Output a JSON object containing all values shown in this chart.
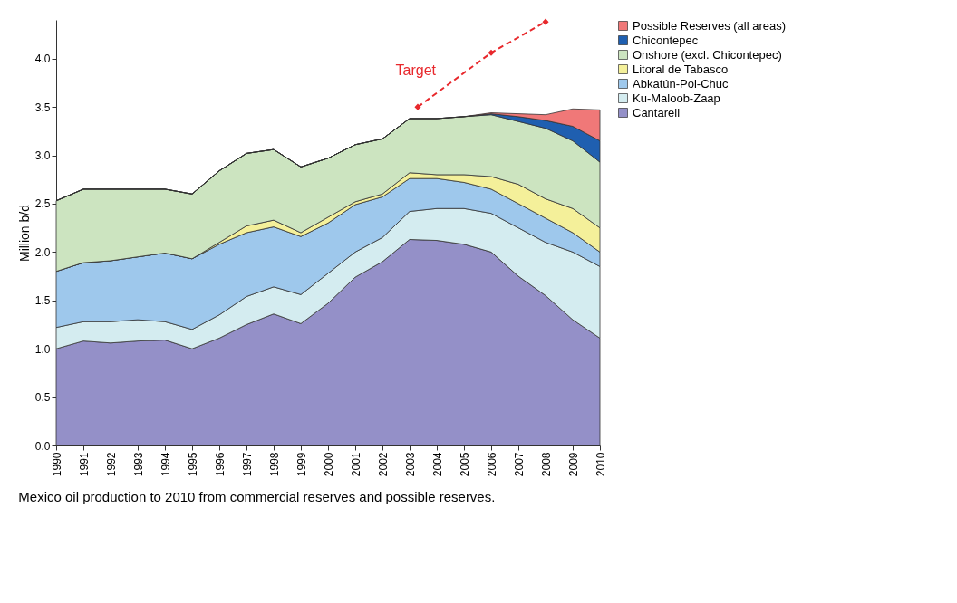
{
  "chart_data": {
    "type": "area",
    "stacked": true,
    "ylabel": "Million b/d",
    "x": [
      1990,
      1991,
      1992,
      1993,
      1994,
      1995,
      1996,
      1997,
      1998,
      1999,
      2000,
      2001,
      2002,
      2003,
      2004,
      2005,
      2006,
      2007,
      2008,
      2009,
      2010
    ],
    "xlim": [
      1990,
      2010
    ],
    "xticks": [
      1990,
      1991,
      1992,
      1993,
      1994,
      1995,
      1996,
      1997,
      1998,
      1999,
      2000,
      2001,
      2002,
      2003,
      2004,
      2005,
      2006,
      2007,
      2008,
      2009,
      2010
    ],
    "ylim": [
      0,
      4.4
    ],
    "yticks": [
      {
        "value": 0,
        "label": "0.0"
      },
      0.5,
      {
        "value": 1,
        "label": "1.0"
      },
      1.5,
      {
        "value": 2,
        "label": "2.0"
      },
      2.5,
      {
        "value": 3,
        "label": "3.0"
      },
      3.5,
      {
        "value": 4,
        "label": "4.0"
      }
    ],
    "grid": false,
    "legend": "right",
    "series": [
      {
        "name": "Cantarell",
        "color": "#9490c8",
        "values": [
          1.0,
          1.08,
          1.06,
          1.08,
          1.09,
          1.0,
          1.11,
          1.25,
          1.36,
          1.26,
          1.47,
          1.74,
          1.9,
          2.13,
          2.12,
          2.08,
          2.0,
          1.75,
          1.55,
          1.3,
          1.11
        ]
      },
      {
        "name": "Ku-Maloob-Zaap",
        "color": "#d4ecf0",
        "values": [
          0.22,
          0.2,
          0.22,
          0.22,
          0.19,
          0.2,
          0.24,
          0.29,
          0.28,
          0.3,
          0.31,
          0.26,
          0.25,
          0.29,
          0.33,
          0.37,
          0.4,
          0.5,
          0.55,
          0.7,
          0.74
        ]
      },
      {
        "name": "Abkatún-Pol-Chuc",
        "color": "#9ec8ec",
        "values": [
          0.58,
          0.61,
          0.63,
          0.65,
          0.71,
          0.73,
          0.73,
          0.66,
          0.62,
          0.6,
          0.52,
          0.49,
          0.42,
          0.34,
          0.31,
          0.27,
          0.25,
          0.25,
          0.25,
          0.2,
          0.15
        ]
      },
      {
        "name": "Litoral de Tabasco",
        "color": "#f4f09a",
        "values": [
          0,
          0,
          0,
          0,
          0,
          0,
          0.02,
          0.07,
          0.07,
          0.04,
          0.06,
          0.03,
          0.03,
          0.06,
          0.04,
          0.08,
          0.13,
          0.2,
          0.2,
          0.25,
          0.25
        ]
      },
      {
        "name": "Onshore (excl. Chicontepec)",
        "color": "#cce4c0",
        "values": [
          0.73,
          0.76,
          0.74,
          0.7,
          0.66,
          0.67,
          0.74,
          0.75,
          0.73,
          0.68,
          0.61,
          0.59,
          0.57,
          0.56,
          0.58,
          0.6,
          0.64,
          0.65,
          0.73,
          0.7,
          0.68
        ]
      },
      {
        "name": "Chicontepec",
        "color": "#1f5fb0",
        "values": [
          0,
          0,
          0,
          0,
          0,
          0,
          0,
          0,
          0,
          0,
          0,
          0,
          0,
          0,
          0,
          0,
          0.01,
          0.05,
          0.08,
          0.15,
          0.22
        ]
      },
      {
        "name": "Possible Reserves (all areas)",
        "color": "#f07878",
        "values": [
          0,
          0,
          0,
          0,
          0,
          0,
          0,
          0,
          0,
          0,
          0,
          0,
          0,
          0,
          0,
          0,
          0.01,
          0.03,
          0.06,
          0.18,
          0.32
        ]
      },
      {
        "name": "Target",
        "type": "line",
        "color": "#e8282c",
        "line_style": "dashed",
        "marker": "diamond",
        "x": [
          2003.3,
          2006,
          2008
        ],
        "values": [
          3.5,
          4.06,
          4.38
        ]
      }
    ],
    "annotations": [
      "Mexico oil production to 2010 from commercial reserves and possible reserves."
    ]
  }
}
